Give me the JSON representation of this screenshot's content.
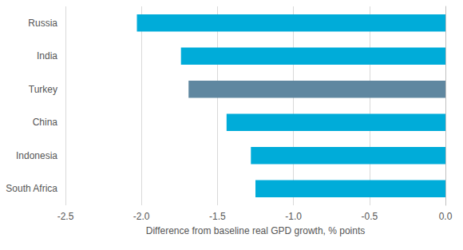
{
  "chart_data": {
    "type": "bar",
    "orientation": "horizontal",
    "categories": [
      "Russia",
      "India",
      "Turkey",
      "China",
      "Indonesia",
      "South Africa"
    ],
    "values": [
      -2.03,
      -1.74,
      -1.69,
      -1.44,
      -1.28,
      -1.25
    ],
    "colors": [
      "#00acd9",
      "#00acd9",
      "#5f87a0",
      "#00acd9",
      "#00acd9",
      "#00acd9"
    ],
    "xlabel": "Difference from baseline real GPD growth, % points",
    "xlim": [
      -2.5,
      0
    ],
    "xticks": [
      -2.5,
      {
        "value": -2,
        "label": "-2.0"
      },
      -1.5,
      {
        "value": -1,
        "label": "-1.0"
      },
      -0.5,
      {
        "value": 0,
        "label": "0.0"
      }
    ],
    "grid": true
  }
}
